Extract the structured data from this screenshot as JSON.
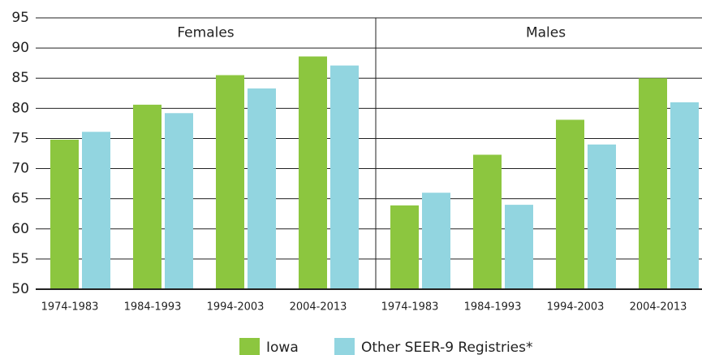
{
  "chart_data": {
    "type": "bar",
    "panels": [
      "Females",
      "Males"
    ],
    "categories": [
      "1974-1983",
      "1984-1993",
      "1994-2003",
      "2004-2013",
      "1974-1983",
      "1984-1993",
      "1994-2003",
      "2004-2013"
    ],
    "series": [
      {
        "name": "Iowa",
        "color": "#8cc63f",
        "values": [
          74.8,
          80.6,
          85.5,
          88.6,
          63.9,
          72.3,
          78.1,
          85.0
        ]
      },
      {
        "name": "Other SEER-9 Registries*",
        "color": "#92d5e0",
        "values": [
          76.1,
          79.2,
          83.3,
          87.1,
          66.0,
          64.0,
          74.0,
          81.0
        ]
      }
    ],
    "ylim": [
      50,
      95
    ],
    "yticks": [
      50,
      55,
      60,
      65,
      70,
      75,
      80,
      85,
      90,
      95
    ],
    "grid": true
  }
}
